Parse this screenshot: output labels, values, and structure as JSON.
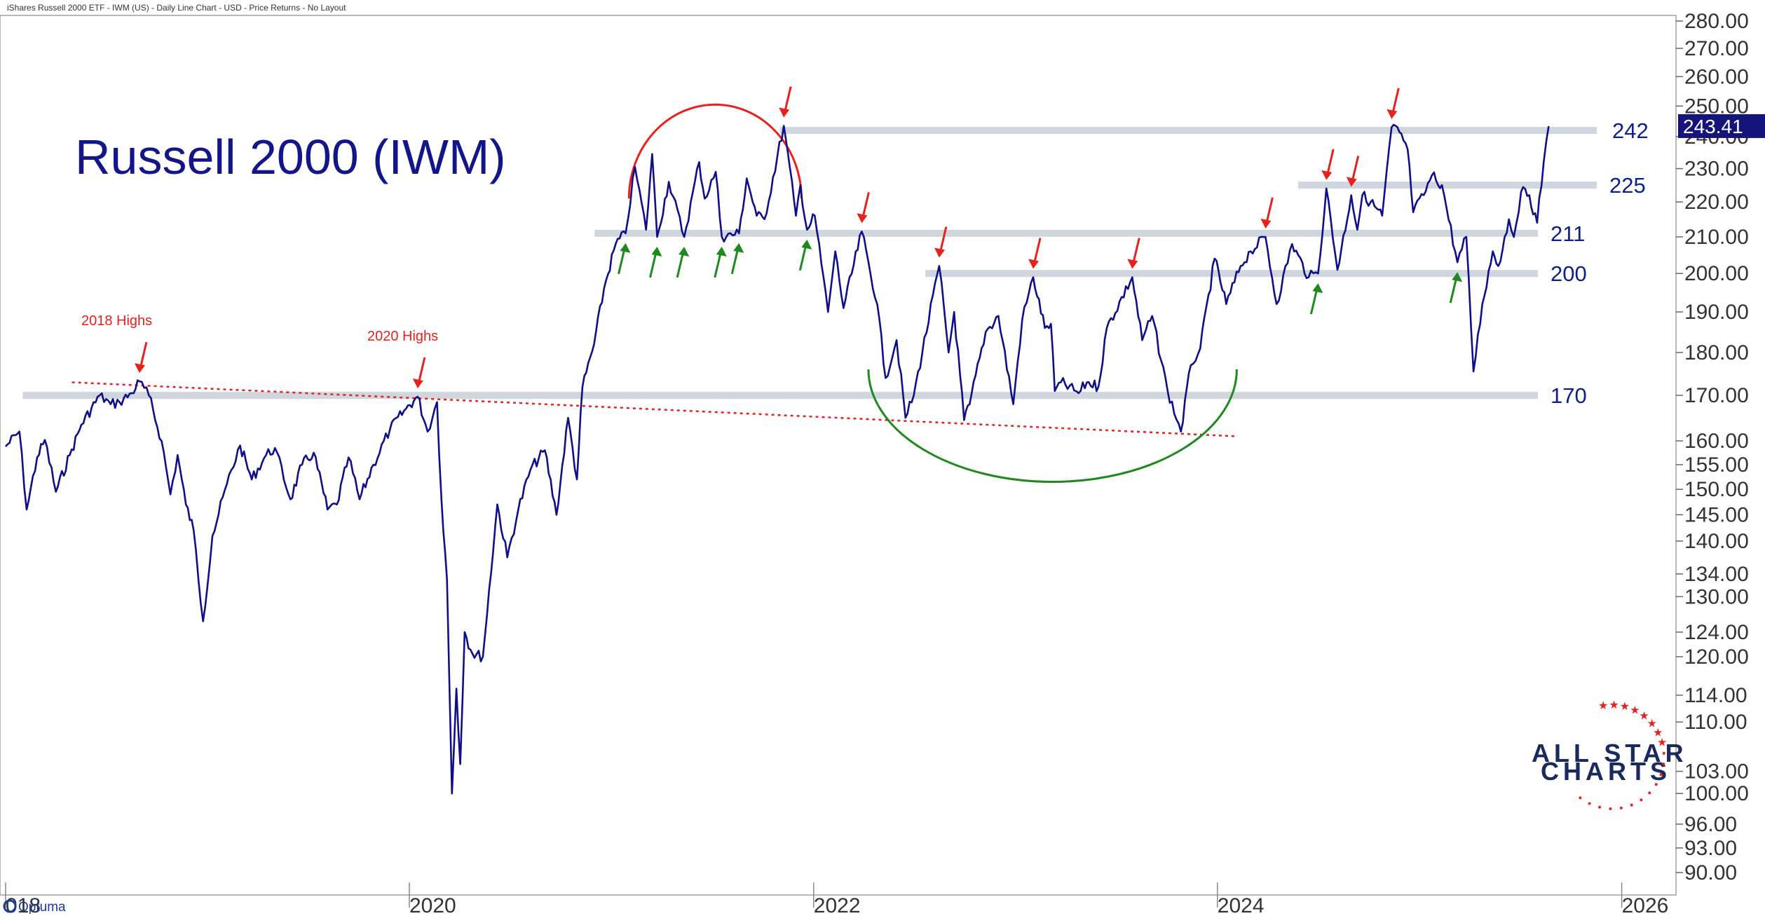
{
  "header": {
    "subtitle": "iShares Russell 2000 ETF - IWM (US) - Daily Line Chart - USD - Price Returns - No Layout"
  },
  "brand": {
    "optuma": "Optuma",
    "logo_line1": "ALL STAR",
    "logo_line2": "CHARTS"
  },
  "colors": {
    "line": "#0f0f8a",
    "support": "#cfd6de",
    "arrow_red": "#e8211d",
    "arrow_green": "#1e8a1e",
    "arc_red": "#e8211d",
    "arc_green": "#1e8a1e"
  },
  "chart_data": {
    "type": "line",
    "title": "Russell 2000 (IWM)",
    "y_scale": "log",
    "ylim": [
      88,
      282
    ],
    "xlim": [
      "2018-01-01",
      "2026-07-15"
    ],
    "y_ticks": [
      "280.00",
      "270.00",
      "260.00",
      "250.00",
      "240.00",
      "230.00",
      "220.00",
      "210.00",
      "200.00",
      "190.00",
      "180.00",
      "170.00",
      "160.00",
      "155.00",
      "150.00",
      "145.00",
      "140.00",
      "134.00",
      "130.00",
      "124.00",
      "120.00",
      "114.00",
      "110.00",
      "103.00",
      "100.00",
      "96.00",
      "93.00",
      "90.00"
    ],
    "x_ticks": [
      {
        "date": "2018-01-01",
        "label": "018"
      },
      {
        "date": "2020-01-01",
        "label": "2020"
      },
      {
        "date": "2022-01-01",
        "label": "2022"
      },
      {
        "date": "2024-01-01",
        "label": "2024"
      },
      {
        "date": "2026-01-01",
        "label": "2026"
      }
    ],
    "last_value": {
      "date": "2025-08-22",
      "value": 243.41,
      "label": "243.41"
    },
    "series": [
      {
        "values": [
          [
            "2018-01-01",
            158.8
          ],
          [
            "2018-01-26",
            162.0
          ],
          [
            "2018-02-08",
            146.0
          ],
          [
            "2018-02-27",
            156.5
          ],
          [
            "2018-03-13",
            160.2
          ],
          [
            "2018-04-02",
            149.5
          ],
          [
            "2018-04-27",
            157.0
          ],
          [
            "2018-05-18",
            163.5
          ],
          [
            "2018-06-20",
            170.0
          ],
          [
            "2018-07-10",
            168.0
          ],
          [
            "2018-07-26",
            168.5
          ],
          [
            "2018-08-17",
            170.5
          ],
          [
            "2018-08-31",
            173.2
          ],
          [
            "2018-09-17",
            170.0
          ],
          [
            "2018-10-10",
            160.0
          ],
          [
            "2018-10-26",
            149.0
          ],
          [
            "2018-11-08",
            157.0
          ],
          [
            "2018-11-23",
            147.0
          ],
          [
            "2018-12-07",
            142.0
          ],
          [
            "2018-12-24",
            125.8
          ],
          [
            "2019-01-10",
            141.0
          ],
          [
            "2019-02-05",
            151.0
          ],
          [
            "2019-03-01",
            159.0
          ],
          [
            "2019-03-22",
            152.0
          ],
          [
            "2019-04-17",
            157.0
          ],
          [
            "2019-05-03",
            158.5
          ],
          [
            "2019-05-31",
            148.0
          ],
          [
            "2019-06-21",
            155.0
          ],
          [
            "2019-07-12",
            157.5
          ],
          [
            "2019-08-06",
            146.0
          ],
          [
            "2019-08-23",
            147.0
          ],
          [
            "2019-09-13",
            156.5
          ],
          [
            "2019-10-03",
            148.0
          ],
          [
            "2019-10-28",
            155.0
          ],
          [
            "2019-11-27",
            162.5
          ],
          [
            "2019-12-26",
            167.0
          ],
          [
            "2020-01-16",
            169.7
          ],
          [
            "2020-02-03",
            162.0
          ],
          [
            "2020-02-20",
            168.5
          ],
          [
            "2020-02-28",
            148.0
          ],
          [
            "2020-03-09",
            133.0
          ],
          [
            "2020-03-18",
            100.0
          ],
          [
            "2020-03-26",
            115.0
          ],
          [
            "2020-04-02",
            104.0
          ],
          [
            "2020-04-10",
            124.0
          ],
          [
            "2020-04-24",
            120.5
          ],
          [
            "2020-05-13",
            120.0
          ],
          [
            "2020-06-08",
            147.0
          ],
          [
            "2020-06-26",
            137.0
          ],
          [
            "2020-07-16",
            146.0
          ],
          [
            "2020-08-07",
            154.0
          ],
          [
            "2020-09-02",
            158.0
          ],
          [
            "2020-09-23",
            145.0
          ],
          [
            "2020-10-14",
            165.0
          ],
          [
            "2020-10-30",
            152.0
          ],
          [
            "2020-11-09",
            172.0
          ],
          [
            "2020-11-30",
            182.0
          ],
          [
            "2020-12-18",
            196.0
          ],
          [
            "2021-01-08",
            208.0
          ],
          [
            "2021-01-26",
            211.0
          ],
          [
            "2021-02-12",
            230.5
          ],
          [
            "2021-03-04",
            212.0
          ],
          [
            "2021-03-15",
            234.5
          ],
          [
            "2021-03-24",
            210.0
          ],
          [
            "2021-04-14",
            226.0
          ],
          [
            "2021-05-12",
            210.0
          ],
          [
            "2021-06-08",
            232.0
          ],
          [
            "2021-06-18",
            221.0
          ],
          [
            "2021-07-08",
            229.0
          ],
          [
            "2021-07-19",
            210.0
          ],
          [
            "2021-08-19",
            211.0
          ],
          [
            "2021-09-02",
            227.0
          ],
          [
            "2021-09-20",
            216.0
          ],
          [
            "2021-10-04",
            215.0
          ],
          [
            "2021-11-08",
            243.5
          ],
          [
            "2021-11-30",
            216.0
          ],
          [
            "2021-12-08",
            225.0
          ],
          [
            "2021-12-20",
            212.0
          ],
          [
            "2022-01-03",
            216.0
          ],
          [
            "2022-01-27",
            190.0
          ],
          [
            "2022-02-09",
            206.0
          ],
          [
            "2022-02-24",
            191.0
          ],
          [
            "2022-03-29",
            211.5
          ],
          [
            "2022-04-26",
            192.0
          ],
          [
            "2022-05-11",
            174.0
          ],
          [
            "2022-05-31",
            183.0
          ],
          [
            "2022-06-16",
            165.0
          ],
          [
            "2022-07-01",
            170.0
          ],
          [
            "2022-08-16",
            202.0
          ],
          [
            "2022-09-02",
            180.0
          ],
          [
            "2022-09-12",
            190.0
          ],
          [
            "2022-09-30",
            164.5
          ],
          [
            "2022-10-10",
            168.0
          ],
          [
            "2022-11-08",
            185.0
          ],
          [
            "2022-12-01",
            189.0
          ],
          [
            "2022-12-28",
            168.0
          ],
          [
            "2023-01-13",
            188.0
          ],
          [
            "2023-02-02",
            199.0
          ],
          [
            "2023-02-23",
            186.0
          ],
          [
            "2023-03-06",
            187.0
          ],
          [
            "2023-03-13",
            171.0
          ],
          [
            "2023-03-24",
            173.0
          ],
          [
            "2023-04-25",
            170.5
          ],
          [
            "2023-05-10",
            173.0
          ],
          [
            "2023-05-31",
            172.0
          ],
          [
            "2023-06-15",
            186.0
          ],
          [
            "2023-07-31",
            199.0
          ],
          [
            "2023-08-18",
            183.0
          ],
          [
            "2023-09-05",
            189.0
          ],
          [
            "2023-10-03",
            171.0
          ],
          [
            "2023-10-27",
            162.0
          ],
          [
            "2023-11-14",
            177.0
          ],
          [
            "2023-12-01",
            181.0
          ],
          [
            "2023-12-27",
            204.0
          ],
          [
            "2024-01-17",
            192.0
          ],
          [
            "2024-02-12",
            202.0
          ],
          [
            "2024-03-01",
            206.0
          ],
          [
            "2024-03-28",
            210.0
          ],
          [
            "2024-04-17",
            192.0
          ],
          [
            "2024-05-15",
            208.0
          ],
          [
            "2024-06-14",
            199.0
          ],
          [
            "2024-07-01",
            200.0
          ],
          [
            "2024-07-16",
            224.0
          ],
          [
            "2024-08-05",
            201.0
          ],
          [
            "2024-08-30",
            222.0
          ],
          [
            "2024-09-10",
            212.0
          ],
          [
            "2024-09-19",
            222.0
          ],
          [
            "2024-10-04",
            220.0
          ],
          [
            "2024-10-25",
            216.0
          ],
          [
            "2024-11-11",
            243.0
          ],
          [
            "2024-11-25",
            241.5
          ],
          [
            "2024-12-10",
            236.0
          ],
          [
            "2024-12-20",
            217.0
          ],
          [
            "2025-01-08",
            222.0
          ],
          [
            "2025-01-23",
            228.0
          ],
          [
            "2025-02-10",
            225.0
          ],
          [
            "2025-03-10",
            203.0
          ],
          [
            "2025-03-26",
            210.0
          ],
          [
            "2025-04-08",
            175.5
          ],
          [
            "2025-04-24",
            192.0
          ],
          [
            "2025-05-13",
            206.0
          ],
          [
            "2025-05-23",
            202.0
          ],
          [
            "2025-06-11",
            215.0
          ],
          [
            "2025-06-20",
            210.0
          ],
          [
            "2025-07-03",
            223.0
          ],
          [
            "2025-07-18",
            222.0
          ],
          [
            "2025-08-01",
            214.0
          ],
          [
            "2025-08-13",
            232.0
          ],
          [
            "2025-08-22",
            243.4
          ]
        ]
      }
    ],
    "support_lines": [
      {
        "value": 242,
        "label": "242",
        "from": "2021-11-01"
      },
      {
        "value": 225,
        "label": "225",
        "from": "2024-05-26"
      },
      {
        "value": 211,
        "label": "211",
        "from": "2020-12-01"
      },
      {
        "value": 200,
        "label": "200",
        "from": "2022-07-22"
      },
      {
        "value": 170,
        "label": "170",
        "from": "2018-02-01"
      }
    ],
    "trendline": {
      "from": [
        "2018-05-01",
        173.0
      ],
      "to": [
        "2024-02-01",
        161.0
      ]
    },
    "annotations": [
      {
        "text": "2018 Highs",
        "date": "2018-08-31",
        "value": 173.2
      },
      {
        "text": "2020 Highs",
        "date": "2020-01-16",
        "value": 169.7
      }
    ],
    "arrows_red": [
      [
        "2021-11-08",
        243.5
      ],
      [
        "2022-03-29",
        211.5
      ],
      [
        "2022-08-16",
        202.0
      ],
      [
        "2023-02-02",
        199.0
      ],
      [
        "2023-07-31",
        199.0
      ],
      [
        "2024-03-28",
        210.0
      ],
      [
        "2024-07-16",
        224.0
      ],
      [
        "2024-08-30",
        222.0
      ],
      [
        "2024-11-11",
        243.0
      ]
    ],
    "arrows_green": [
      [
        "2021-01-26",
        211.0
      ],
      [
        "2021-03-24",
        210.0
      ],
      [
        "2021-05-12",
        210.0
      ],
      [
        "2021-07-19",
        210.0
      ],
      [
        "2021-08-19",
        211.0
      ],
      [
        "2021-12-20",
        212.0
      ],
      [
        "2024-07-01",
        200.0
      ],
      [
        "2025-03-10",
        203.0
      ]
    ],
    "arcs": [
      {
        "color": "red",
        "type": "top",
        "from": "2021-02-01",
        "to": "2021-12-10",
        "base": 221,
        "peak": 250.5
      },
      {
        "color": "green",
        "type": "bottom",
        "from": "2022-04-10",
        "to": "2024-02-05",
        "base": 176,
        "trough": 151.5
      }
    ]
  }
}
